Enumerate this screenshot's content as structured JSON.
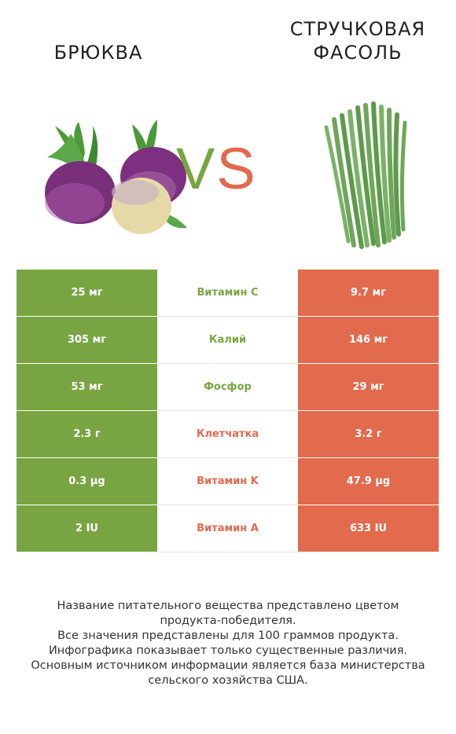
{
  "left_product": {
    "name": "БРЮКВА",
    "color": "#78a542"
  },
  "right_product": {
    "name_line1": "СТРУЧКОВАЯ",
    "name_line2": "ФАСОЛЬ",
    "color": "#e26a4d"
  },
  "vs": {
    "v": "V",
    "s": "S"
  },
  "rows": [
    {
      "left": "25 мг",
      "nutrient": "Витамин C",
      "right": "9.7 мг",
      "winner_color": "#78a542"
    },
    {
      "left": "305 мг",
      "nutrient": "Калий",
      "right": "146 мг",
      "winner_color": "#78a542"
    },
    {
      "left": "53 мг",
      "nutrient": "Фосфор",
      "right": "29 мг",
      "winner_color": "#78a542"
    },
    {
      "left": "2.3 г",
      "nutrient": "Клетчатка",
      "right": "3.2 г",
      "winner_color": "#e26a4d"
    },
    {
      "left": "0.3 µg",
      "nutrient": "Витамин K",
      "right": "47.9 µg",
      "winner_color": "#e26a4d"
    },
    {
      "left": "2 IU",
      "nutrient": "Витамин A",
      "right": "633 IU",
      "winner_color": "#e26a4d"
    }
  ],
  "footer": [
    "Название питательного вещества представлено цветом",
    "продукта-победителя.",
    "Все значения представлены для 100 граммов продукта.",
    "Инфографика показывает только существенные различия.",
    "Основным источником информации является база министерства",
    "сельского хозяйства США."
  ]
}
